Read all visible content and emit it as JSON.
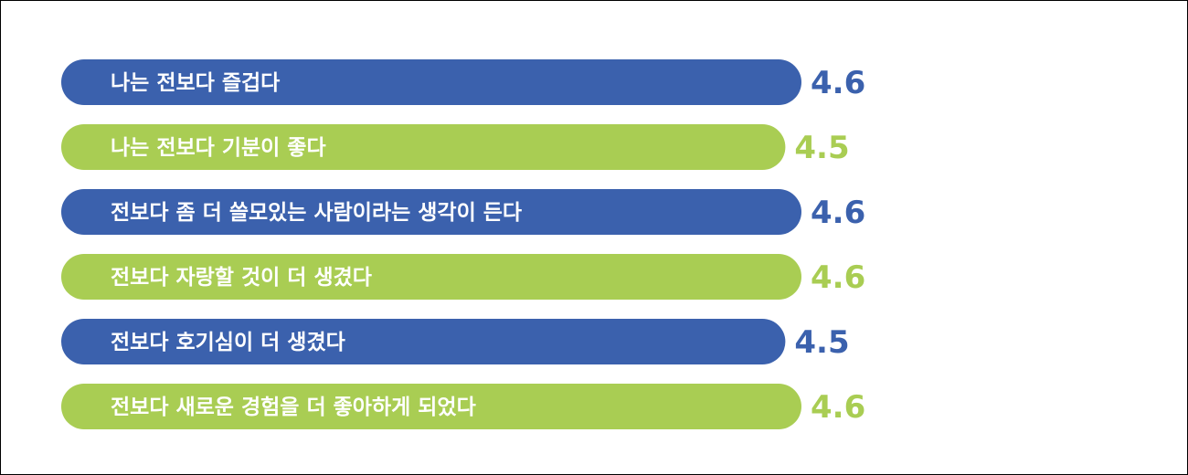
{
  "chart_data": {
    "type": "bar",
    "orientation": "horizontal",
    "categories": [
      "나는 전보다 즐겁다",
      "나는 전보다 기분이 좋다",
      "전보다 좀 더 쓸모있는 사람이라는 생각이 든다",
      "전보다 자랑할 것이 더 생겼다",
      "전보다 호기심이 더 생겼다",
      "전보다 새로운 경험을 더 좋아하게 되었다"
    ],
    "values": [
      4.6,
      4.5,
      4.6,
      4.6,
      4.5,
      4.6
    ],
    "value_labels": [
      "4.6",
      "4.5",
      "4.6",
      "4.6",
      "4.5",
      "4.6"
    ],
    "bar_colors": [
      "#3b61ad",
      "#a9cd53",
      "#3b61ad",
      "#a9cd53",
      "#3b61ad",
      "#a9cd53"
    ],
    "title": "",
    "xlabel": "",
    "ylabel": "",
    "grid": false,
    "legend": "none"
  }
}
